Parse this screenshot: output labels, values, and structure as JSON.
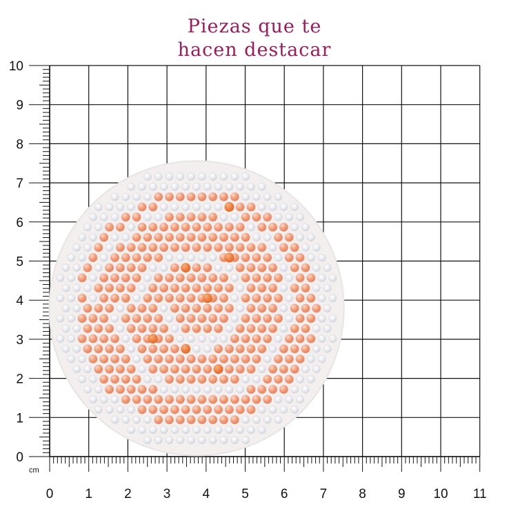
{
  "title": {
    "line1": "Piezas que te",
    "line2": "hacen destacar"
  },
  "ruler": {
    "unit": "cm",
    "x_labels": [
      "0",
      "1",
      "2",
      "3",
      "4",
      "5",
      "6",
      "7",
      "8",
      "9",
      "10",
      "11"
    ],
    "y_labels": [
      "0",
      "1",
      "2",
      "3",
      "4",
      "5",
      "6",
      "7",
      "8",
      "9",
      "10"
    ]
  },
  "product": {
    "shape": "circle",
    "diameter_cm": 7.5,
    "base_color": "#f3efef",
    "pearl_color": "#f29a76",
    "pearl_accent_color": "#ee7d3f",
    "rhinestone_color": "#eceef3"
  },
  "colors": {
    "title": "#9b1b5a",
    "grid": "#111111"
  }
}
